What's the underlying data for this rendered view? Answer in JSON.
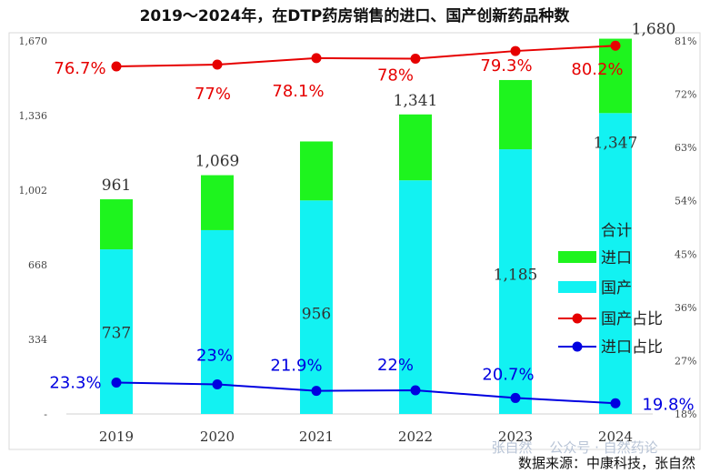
{
  "chart_data": {
    "type": "bar",
    "title": "2019～2024年，在DTP药房销售的进口、国产创新药品种数",
    "categories": [
      "2019",
      "2020",
      "2021",
      "2022",
      "2023",
      "2024"
    ],
    "series": [
      {
        "name": "国产",
        "values": [
          737,
          823,
          956,
          1046,
          1185,
          1347
        ],
        "color": "#12f2f2"
      },
      {
        "name": "进口",
        "values": [
          224,
          246,
          264,
          295,
          310,
          333
        ],
        "color": "#1ef41e"
      }
    ],
    "totals": [
      961,
      1069,
      1220,
      1341,
      1495,
      1680
    ],
    "totals_series_name": "合计",
    "line_series": [
      {
        "name": "国产占比",
        "values": [
          76.7,
          77,
          78.1,
          78,
          79.3,
          80.2
        ],
        "labels": [
          "76.7%",
          "77%",
          "78.1%",
          "78%",
          "79.3%",
          "80.2%"
        ],
        "color": "#e60000"
      },
      {
        "name": "进口占比",
        "values": [
          23.3,
          23,
          21.9,
          22,
          20.7,
          19.8
        ],
        "labels": [
          "23.3%",
          "23%",
          "21.9%",
          "22%",
          "20.7%",
          "19.8%"
        ],
        "color": "#0000e0"
      }
    ],
    "value_labels": [
      {
        "cat": 0,
        "text": "961",
        "at": 961
      },
      {
        "cat": 0,
        "text": "737",
        "at": 300
      },
      {
        "cat": 1,
        "text": "1,069",
        "at": 1069
      },
      {
        "cat": 2,
        "text": "956",
        "at": 385
      },
      {
        "cat": 3,
        "text": "1,341",
        "at": 1341
      },
      {
        "cat": 4,
        "text": "1,185",
        "at": 560
      },
      {
        "cat": 5,
        "text": "1,347",
        "at": 1150
      },
      {
        "cat": 5,
        "text": "1,680",
        "at": 1660
      }
    ],
    "y_left": {
      "min": 0,
      "max": 1670,
      "ticks": [
        0,
        334,
        668,
        1002,
        1336,
        1670
      ],
      "tick_labels": [
        "-",
        "334",
        "668",
        "1,002",
        "1,336",
        "1,670"
      ]
    },
    "y_right": {
      "min": 18,
      "max": 81,
      "ticks": [
        18,
        27,
        36,
        45,
        54,
        63,
        72,
        81
      ],
      "tick_labels": [
        "18%",
        "27%",
        "36%",
        "45%",
        "54%",
        "63%",
        "72%",
        "81%"
      ]
    },
    "legend": {
      "position": "right",
      "items": [
        {
          "label": "合计",
          "kind": "none"
        },
        {
          "label": "进口",
          "kind": "box",
          "color": "#1ef41e"
        },
        {
          "label": "国产",
          "kind": "box",
          "color": "#12f2f2"
        },
        {
          "label": "国产占比",
          "kind": "line",
          "color": "#e60000"
        },
        {
          "label": "进口占比",
          "kind": "line",
          "color": "#0000e0"
        }
      ]
    },
    "grid": false
  },
  "footer": {
    "source": "数据来源：中康科技，张自然",
    "watermark": "公众号 · 自然药论",
    "watermark_author": "张自然"
  }
}
